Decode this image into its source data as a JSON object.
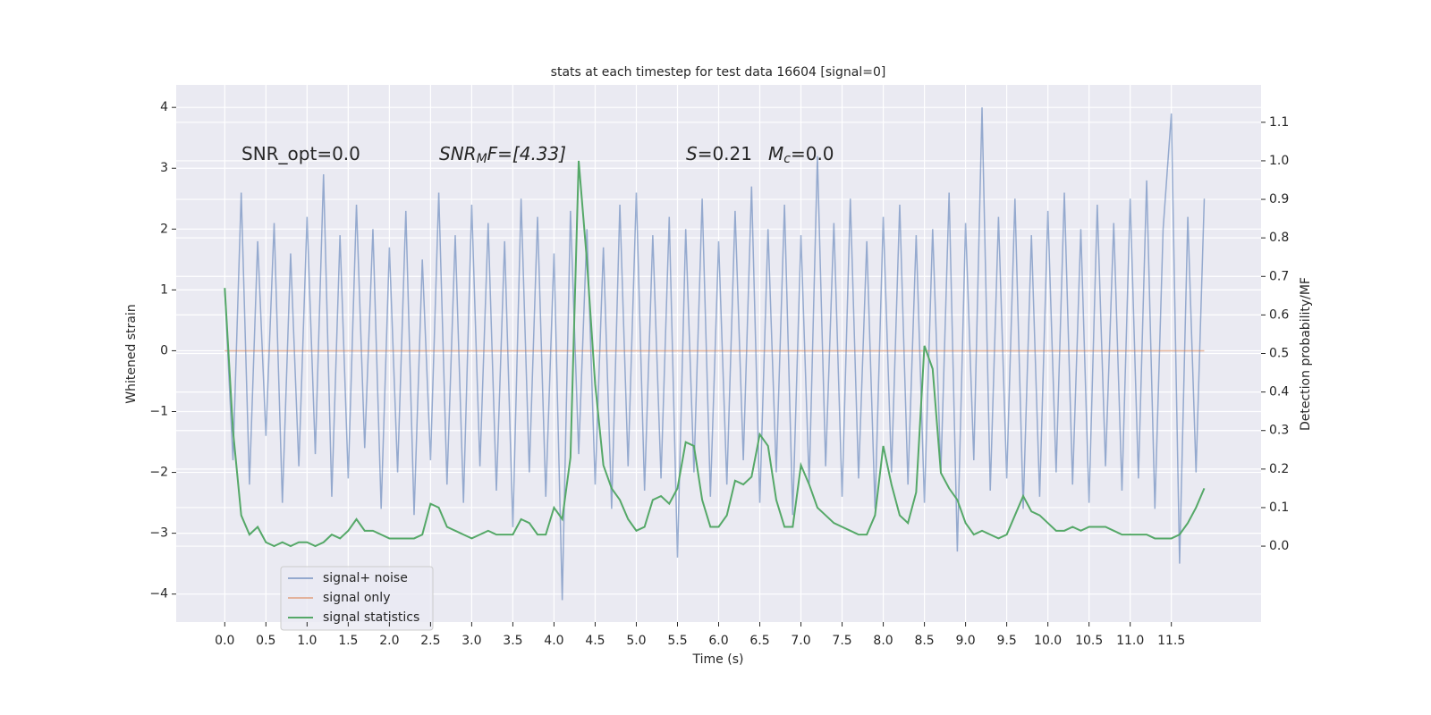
{
  "chart_data": {
    "type": "line",
    "title": "stats at each timestep for test data 16604 [signal=0]",
    "xlabel": "Time (s)",
    "ylabel": "Whitened strain",
    "y2label": "Detection probability/MF",
    "annotations": [
      [
        "SNR_opt=0.0"
      ],
      [
        "SNR",
        "M",
        "F=[4.33]"
      ],
      [
        "S",
        "=0.21",
        "M",
        "c",
        "=0.0"
      ]
    ],
    "x": [
      0,
      0.1,
      0.2,
      0.3,
      0.4,
      0.5,
      0.6,
      0.7,
      0.8,
      0.9,
      1,
      1.1,
      1.2,
      1.3,
      1.4,
      1.5,
      1.6,
      1.7,
      1.8,
      1.9,
      2,
      2.1,
      2.2,
      2.3,
      2.4,
      2.5,
      2.6,
      2.7,
      2.8,
      2.9,
      3,
      3.1,
      3.2,
      3.3,
      3.4,
      3.5,
      3.6,
      3.7,
      3.8,
      3.9,
      4,
      4.1,
      4.2,
      4.3,
      4.4,
      4.5,
      4.6,
      4.7,
      4.8,
      4.9,
      5,
      5.1,
      5.2,
      5.3,
      5.4,
      5.5,
      5.6,
      5.7,
      5.8,
      5.9,
      6,
      6.1,
      6.2,
      6.3,
      6.4,
      6.5,
      6.6,
      6.7,
      6.8,
      6.9,
      7,
      7.1,
      7.2,
      7.3,
      7.4,
      7.5,
      7.6,
      7.7,
      7.8,
      7.9,
      8,
      8.1,
      8.2,
      8.3,
      8.4,
      8.5,
      8.6,
      8.7,
      8.8,
      8.9,
      9,
      9.1,
      9.2,
      9.3,
      9.4,
      9.5,
      9.6,
      9.7,
      9.8,
      9.9,
      10,
      10.1,
      10.2,
      10.3,
      10.4,
      10.5,
      10.6,
      10.7,
      10.8,
      10.9,
      11,
      11.1,
      11.2,
      11.3,
      11.4,
      11.5,
      11.6,
      11.7,
      11.8,
      11.9
    ],
    "series": [
      {
        "name": "signal+ noise",
        "color": "#4c72b0",
        "values": [
          1.0,
          -1.8,
          2.6,
          -2.2,
          1.8,
          -1.4,
          2.1,
          -2.5,
          1.6,
          -1.9,
          2.2,
          -1.7,
          2.9,
          -2.4,
          1.9,
          -2.1,
          2.4,
          -1.6,
          2.0,
          -2.6,
          1.7,
          -2.0,
          2.3,
          -2.7,
          1.5,
          -1.8,
          2.6,
          -2.2,
          1.9,
          -2.5,
          2.4,
          -1.9,
          2.1,
          -2.3,
          1.8,
          -2.9,
          2.5,
          -2.0,
          2.2,
          -2.4,
          1.6,
          -4.1,
          2.3,
          -1.7,
          2.0,
          -2.2,
          1.7,
          -2.6,
          2.4,
          -1.9,
          2.6,
          -2.3,
          1.9,
          -2.1,
          2.2,
          -3.4,
          2.0,
          -2.0,
          2.5,
          -2.4,
          1.8,
          -2.2,
          2.3,
          -1.8,
          2.7,
          -2.5,
          2.0,
          -2.0,
          2.4,
          -2.7,
          1.9,
          -2.2,
          3.2,
          -1.9,
          2.1,
          -2.4,
          2.5,
          -2.1,
          1.8,
          -2.6,
          2.2,
          -2.0,
          2.4,
          -2.2,
          1.9,
          -2.5,
          2.0,
          -2.0,
          2.6,
          -3.3,
          2.1,
          -1.8,
          4.0,
          -2.3,
          2.2,
          -2.1,
          2.5,
          -2.6,
          1.9,
          -2.4,
          2.3,
          -2.0,
          2.6,
          -2.2,
          2.0,
          -2.5,
          2.4,
          -1.9,
          2.1,
          -2.3,
          2.5,
          -2.1,
          2.8,
          -2.6,
          2.0,
          3.9,
          -3.5,
          2.2,
          -2.0,
          2.5
        ]
      },
      {
        "name": "signal only",
        "color": "#dd8452",
        "values": [
          0,
          0,
          0,
          0,
          0,
          0,
          0,
          0,
          0,
          0,
          0,
          0,
          0,
          0,
          0,
          0,
          0,
          0,
          0,
          0,
          0,
          0,
          0,
          0,
          0,
          0,
          0,
          0,
          0,
          0,
          0,
          0,
          0,
          0,
          0,
          0,
          0,
          0,
          0,
          0,
          0,
          0,
          0,
          0,
          0,
          0,
          0,
          0,
          0,
          0,
          0,
          0,
          0,
          0,
          0,
          0,
          0,
          0,
          0,
          0,
          0,
          0,
          0,
          0,
          0,
          0,
          0,
          0,
          0,
          0,
          0,
          0,
          0,
          0,
          0,
          0,
          0,
          0,
          0,
          0,
          0,
          0,
          0,
          0,
          0,
          0,
          0,
          0,
          0,
          0,
          0,
          0,
          0,
          0,
          0,
          0,
          0,
          0,
          0,
          0,
          0,
          0,
          0,
          0,
          0,
          0,
          0,
          0,
          0,
          0,
          0,
          0,
          0,
          0,
          0,
          0,
          0,
          0,
          0,
          0
        ]
      },
      {
        "name": "signal statistics",
        "color": "#55a868",
        "axis": "y2",
        "values": [
          0.67,
          0.3,
          0.08,
          0.03,
          0.05,
          0.01,
          0.0,
          0.01,
          0.0,
          0.01,
          0.01,
          0.0,
          0.01,
          0.03,
          0.02,
          0.04,
          0.07,
          0.04,
          0.04,
          0.03,
          0.02,
          0.02,
          0.02,
          0.02,
          0.03,
          0.11,
          0.1,
          0.05,
          0.04,
          0.03,
          0.02,
          0.03,
          0.04,
          0.03,
          0.03,
          0.03,
          0.07,
          0.06,
          0.03,
          0.03,
          0.1,
          0.07,
          0.23,
          1.0,
          0.74,
          0.42,
          0.21,
          0.15,
          0.12,
          0.07,
          0.04,
          0.05,
          0.12,
          0.13,
          0.11,
          0.15,
          0.27,
          0.26,
          0.12,
          0.05,
          0.05,
          0.08,
          0.17,
          0.16,
          0.18,
          0.29,
          0.26,
          0.12,
          0.05,
          0.05,
          0.21,
          0.16,
          0.1,
          0.08,
          0.06,
          0.05,
          0.04,
          0.03,
          0.03,
          0.08,
          0.26,
          0.16,
          0.08,
          0.06,
          0.14,
          0.52,
          0.46,
          0.19,
          0.15,
          0.12,
          0.06,
          0.03,
          0.04,
          0.03,
          0.02,
          0.03,
          0.08,
          0.13,
          0.09,
          0.08,
          0.06,
          0.04,
          0.04,
          0.05,
          0.04,
          0.05,
          0.05,
          0.05,
          0.04,
          0.03,
          0.03,
          0.03,
          0.03,
          0.02,
          0.02,
          0.02,
          0.03,
          0.06,
          0.1,
          0.15
        ]
      }
    ],
    "xlim": [
      -0.59,
      12.59
    ],
    "xticks": [
      {
        "value": 0,
        "label": "0.0"
      },
      0.5,
      {
        "value": 1,
        "label": "1.0"
      },
      1.5,
      {
        "value": 2,
        "label": "2.0"
      },
      2.5,
      {
        "value": 3,
        "label": "3.0"
      },
      3.5,
      {
        "value": 4,
        "label": "4.0"
      },
      4.5,
      {
        "value": 5,
        "label": "5.0"
      },
      5.5,
      {
        "value": 6,
        "label": "6.0"
      },
      6.5,
      {
        "value": 7,
        "label": "7.0"
      },
      7.5,
      {
        "value": 8,
        "label": "8.0"
      },
      8.5,
      {
        "value": 9,
        "label": "9.0"
      },
      9.5,
      {
        "value": 10,
        "label": "10.0"
      },
      10.5,
      {
        "value": 11,
        "label": "11.0"
      },
      11.5
    ],
    "ylim": [
      -4.46,
      4.37
    ],
    "yticks": [
      {
        "value": -4,
        "label": "−4"
      },
      {
        "value": -3,
        "label": "−3"
      },
      {
        "value": -2,
        "label": "−2"
      },
      {
        "value": -1,
        "label": "−1"
      },
      0,
      1,
      2,
      3,
      4
    ],
    "y2lim": [
      -0.197,
      1.197
    ],
    "y2ticks": [
      {
        "value": 0,
        "label": "0.0"
      },
      0.1,
      0.2,
      0.3,
      0.4,
      0.5,
      0.6,
      0.7,
      0.8,
      0.9,
      {
        "value": 1,
        "label": "1.0"
      },
      1.1
    ],
    "grid": true,
    "legend": "lower left"
  }
}
